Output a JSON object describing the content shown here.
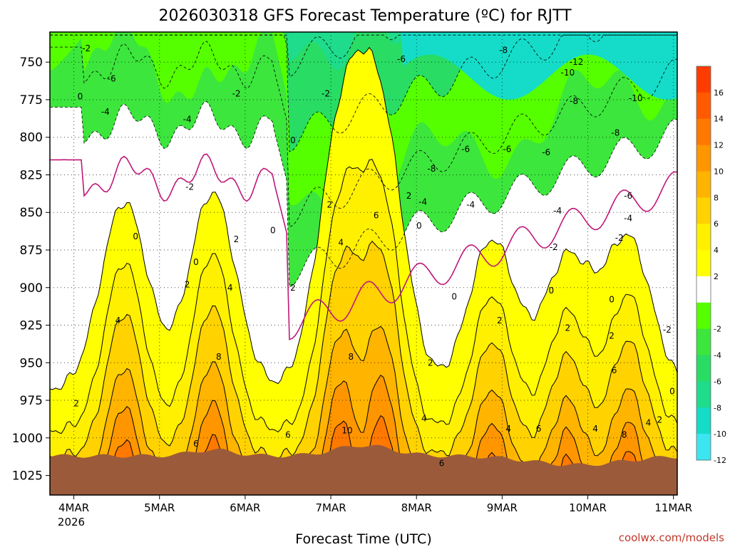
{
  "chart_data": {
    "type": "contour",
    "title": "2026030318 GFS Forecast Temperature (ºC) for RJTT",
    "xlabel": "Forecast Time (UTC)",
    "credit": "coolwx.com/models",
    "year_label": "2026",
    "x_labels": [
      "4MAR",
      "5MAR",
      "6MAR",
      "7MAR",
      "8MAR",
      "9MAR",
      "10MAR",
      "11MAR"
    ],
    "y_labels": [
      "750",
      "775",
      "800",
      "825",
      "850",
      "875",
      "900",
      "925",
      "950",
      "975",
      "1000",
      "1025"
    ],
    "y_axis": {
      "unit": "hPa",
      "top": 730,
      "bottom": 1038,
      "inverted": true
    },
    "colorbar": {
      "ticks": [
        "16",
        "14",
        "12",
        "10",
        "8",
        "6",
        "4",
        "2",
        "-2",
        "-4",
        "-6",
        "-8",
        "-10",
        "-12"
      ],
      "colors": {
        "c16": "#ff3c00",
        "c14": "#ff5a00",
        "c12": "#ff7800",
        "c10": "#ff9600",
        "c8": "#ffb400",
        "c6": "#ffd200",
        "c4": "#fff000",
        "c2": "#ffff00",
        "c0": "#ffffff",
        "cm2": "#55ff00",
        "cm4": "#3ce63c",
        "cm6": "#28dc64",
        "cm8": "#1edc8c",
        "cm10": "#14dcc8",
        "cm12": "#3ce6f0"
      }
    },
    "contour_labels": [
      {
        "t": 0.5,
        "p": 741,
        "text": "-2"
      },
      {
        "t": 1.5,
        "p": 761,
        "text": "-6"
      },
      {
        "t": 1.25,
        "p": 783,
        "text": "-4"
      },
      {
        "t": 4.5,
        "p": 788,
        "text": "-4"
      },
      {
        "t": 6.45,
        "p": 771,
        "text": "-2"
      },
      {
        "t": 10.0,
        "p": 771,
        "text": "-2"
      },
      {
        "t": 0.25,
        "p": 773,
        "text": "0"
      },
      {
        "t": 8.7,
        "p": 802,
        "text": "0"
      },
      {
        "t": 4.6,
        "p": 833,
        "text": "-2"
      },
      {
        "t": 10.15,
        "p": 845,
        "text": "2"
      },
      {
        "t": 2.45,
        "p": 866,
        "text": "0"
      },
      {
        "t": 6.45,
        "p": 868,
        "text": "2"
      },
      {
        "t": 7.9,
        "p": 862,
        "text": "0"
      },
      {
        "t": 4.85,
        "p": 883,
        "text": "0"
      },
      {
        "t": 10.6,
        "p": 870,
        "text": "4"
      },
      {
        "t": 12.0,
        "p": 852,
        "text": "6"
      },
      {
        "t": 13.3,
        "p": 839,
        "text": "2"
      },
      {
        "t": 4.5,
        "p": 898,
        "text": "2"
      },
      {
        "t": 8.7,
        "p": 900,
        "text": "2"
      },
      {
        "t": 6.2,
        "p": 900,
        "text": "4"
      },
      {
        "t": 1.75,
        "p": 922,
        "text": "4"
      },
      {
        "t": 5.75,
        "p": 946,
        "text": "8"
      },
      {
        "t": 11.0,
        "p": 946,
        "text": "8"
      },
      {
        "t": 10.85,
        "p": 995,
        "text": "10"
      },
      {
        "t": 4.85,
        "p": 1004,
        "text": "6"
      },
      {
        "t": 8.5,
        "p": 998,
        "text": "6"
      },
      {
        "t": 0.1,
        "p": 977,
        "text": "2"
      },
      {
        "t": 13.7,
        "p": 859,
        "text": "0"
      },
      {
        "t": 13.0,
        "p": 748,
        "text": "-6"
      },
      {
        "t": 17.05,
        "p": 742,
        "text": "-8"
      },
      {
        "t": 19.95,
        "p": 750,
        "text": "-12"
      },
      {
        "t": 19.6,
        "p": 757,
        "text": "-10"
      },
      {
        "t": 22.3,
        "p": 774,
        "text": "-10"
      },
      {
        "t": 19.85,
        "p": 776,
        "text": "-8"
      },
      {
        "t": 21.5,
        "p": 797,
        "text": "-8"
      },
      {
        "t": 15.55,
        "p": 808,
        "text": "-6"
      },
      {
        "t": 17.2,
        "p": 808,
        "text": "-6"
      },
      {
        "t": 18.75,
        "p": 810,
        "text": "-6"
      },
      {
        "t": 14.2,
        "p": 821,
        "text": "-8"
      },
      {
        "t": 13.85,
        "p": 843,
        "text": "-4"
      },
      {
        "t": 15.75,
        "p": 845,
        "text": "-4"
      },
      {
        "t": 19.2,
        "p": 849,
        "text": "-4"
      },
      {
        "t": 22.0,
        "p": 839,
        "text": "-6"
      },
      {
        "t": 22.0,
        "p": 854,
        "text": "-4"
      },
      {
        "t": 19.05,
        "p": 873,
        "text": "-2"
      },
      {
        "t": 21.65,
        "p": 867,
        "text": "-2"
      },
      {
        "t": 15.1,
        "p": 906,
        "text": "0"
      },
      {
        "t": 18.95,
        "p": 902,
        "text": "0"
      },
      {
        "t": 21.35,
        "p": 908,
        "text": "0"
      },
      {
        "t": 23.55,
        "p": 928,
        "text": "-2"
      },
      {
        "t": 16.9,
        "p": 922,
        "text": "2"
      },
      {
        "t": 19.6,
        "p": 927,
        "text": "2"
      },
      {
        "t": 21.35,
        "p": 932,
        "text": "2"
      },
      {
        "t": 14.15,
        "p": 950,
        "text": "2"
      },
      {
        "t": 21.45,
        "p": 955,
        "text": "6"
      },
      {
        "t": 13.9,
        "p": 987,
        "text": "4"
      },
      {
        "t": 17.25,
        "p": 994,
        "text": "4"
      },
      {
        "t": 18.45,
        "p": 994,
        "text": "6"
      },
      {
        "t": 20.7,
        "p": 994,
        "text": "4"
      },
      {
        "t": 21.85,
        "p": 998,
        "text": "8"
      },
      {
        "t": 22.8,
        "p": 990,
        "text": "4"
      },
      {
        "t": 23.25,
        "p": 988,
        "text": "2"
      },
      {
        "t": 14.6,
        "p": 1017,
        "text": "6"
      },
      {
        "t": 23.75,
        "p": 969,
        "text": "0"
      }
    ]
  }
}
